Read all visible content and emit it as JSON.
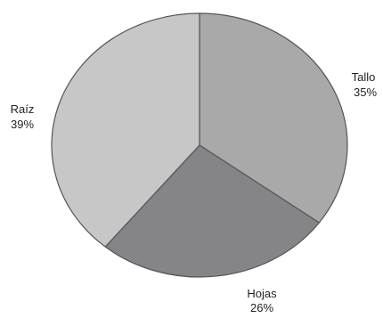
{
  "chart_data": {
    "type": "pie",
    "slices": [
      {
        "label": "Tallo",
        "value": 35,
        "value_label": "35%",
        "color": "#a9a9a9"
      },
      {
        "label": "Hojas",
        "value": 26,
        "value_label": "26%",
        "color": "#858587"
      },
      {
        "label": "Raíz",
        "value": 39,
        "value_label": "39%",
        "color": "#c7c7c8"
      }
    ],
    "start": "12 o'clock",
    "direction": "clockwise",
    "slice_border_color": "#555555",
    "legend": "none",
    "labels_position": "outside"
  }
}
